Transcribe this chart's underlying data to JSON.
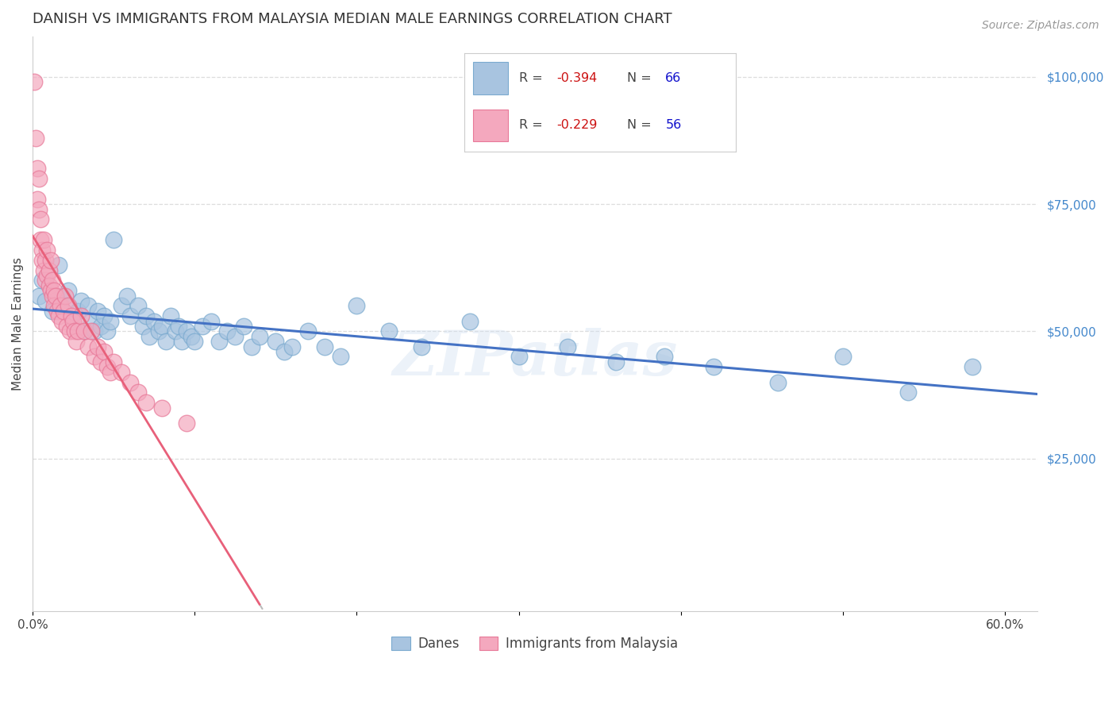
{
  "title": "DANISH VS IMMIGRANTS FROM MALAYSIA MEDIAN MALE EARNINGS CORRELATION CHART",
  "source": "Source: ZipAtlas.com",
  "ylabel": "Median Male Earnings",
  "yticks": [
    0,
    25000,
    50000,
    75000,
    100000
  ],
  "ytick_labels": [
    "",
    "$25,000",
    "$50,000",
    "$75,000",
    "$100,000"
  ],
  "xlim": [
    0.0,
    0.62
  ],
  "ylim": [
    -5000,
    108000
  ],
  "xticks": [
    0.0,
    0.1,
    0.2,
    0.3,
    0.4,
    0.5,
    0.6
  ],
  "xtick_labels": [
    "0.0%",
    "",
    "",
    "",
    "",
    "",
    "60.0%"
  ],
  "legend_blue_r": "-0.394",
  "legend_blue_n": "66",
  "legend_pink_r": "-0.229",
  "legend_pink_n": "56",
  "legend_label_blue": "Danes",
  "legend_label_pink": "Immigrants from Malaysia",
  "blue_color": "#A8C4E0",
  "blue_edge_color": "#7AAACF",
  "pink_color": "#F4A8BE",
  "pink_edge_color": "#E87898",
  "trendline_blue_color": "#4472C4",
  "trendline_pink_color": "#E8607A",
  "trendline_pink_dashed_color": "#BBBBBB",
  "blue_points_x": [
    0.004,
    0.006,
    0.008,
    0.012,
    0.016,
    0.018,
    0.02,
    0.022,
    0.025,
    0.028,
    0.03,
    0.032,
    0.034,
    0.036,
    0.038,
    0.04,
    0.042,
    0.044,
    0.046,
    0.048,
    0.05,
    0.055,
    0.058,
    0.06,
    0.065,
    0.068,
    0.07,
    0.072,
    0.075,
    0.078,
    0.08,
    0.082,
    0.085,
    0.088,
    0.09,
    0.092,
    0.095,
    0.098,
    0.1,
    0.105,
    0.11,
    0.115,
    0.12,
    0.125,
    0.13,
    0.135,
    0.14,
    0.15,
    0.155,
    0.16,
    0.17,
    0.18,
    0.19,
    0.2,
    0.22,
    0.24,
    0.27,
    0.3,
    0.33,
    0.36,
    0.39,
    0.42,
    0.46,
    0.5,
    0.54,
    0.58
  ],
  "blue_points_y": [
    57000,
    60000,
    56000,
    54000,
    63000,
    57000,
    55000,
    58000,
    52000,
    54000,
    56000,
    50000,
    55000,
    52000,
    50000,
    54000,
    51000,
    53000,
    50000,
    52000,
    68000,
    55000,
    57000,
    53000,
    55000,
    51000,
    53000,
    49000,
    52000,
    50000,
    51000,
    48000,
    53000,
    50000,
    51000,
    48000,
    50000,
    49000,
    48000,
    51000,
    52000,
    48000,
    50000,
    49000,
    51000,
    47000,
    49000,
    48000,
    46000,
    47000,
    50000,
    47000,
    45000,
    55000,
    50000,
    47000,
    52000,
    45000,
    47000,
    44000,
    45000,
    43000,
    40000,
    45000,
    38000,
    43000
  ],
  "pink_points_x": [
    0.001,
    0.002,
    0.003,
    0.003,
    0.004,
    0.004,
    0.005,
    0.005,
    0.006,
    0.006,
    0.007,
    0.007,
    0.008,
    0.008,
    0.009,
    0.009,
    0.01,
    0.01,
    0.011,
    0.011,
    0.012,
    0.012,
    0.013,
    0.013,
    0.014,
    0.015,
    0.016,
    0.017,
    0.018,
    0.019,
    0.02,
    0.021,
    0.022,
    0.023,
    0.024,
    0.025,
    0.026,
    0.027,
    0.028,
    0.03,
    0.032,
    0.034,
    0.036,
    0.038,
    0.04,
    0.042,
    0.044,
    0.046,
    0.048,
    0.05,
    0.055,
    0.06,
    0.065,
    0.07,
    0.08,
    0.095
  ],
  "pink_points_y": [
    99000,
    88000,
    82000,
    76000,
    80000,
    74000,
    72000,
    68000,
    66000,
    64000,
    68000,
    62000,
    64000,
    60000,
    66000,
    61000,
    62000,
    59000,
    64000,
    58000,
    60000,
    57000,
    58000,
    55000,
    57000,
    54000,
    53000,
    55000,
    52000,
    54000,
    57000,
    51000,
    55000,
    50000,
    53000,
    52000,
    50000,
    48000,
    50000,
    53000,
    50000,
    47000,
    50000,
    45000,
    47000,
    44000,
    46000,
    43000,
    42000,
    44000,
    42000,
    40000,
    38000,
    36000,
    35000,
    32000
  ],
  "blue_trendline_x_start": 0.0,
  "blue_trendline_x_end": 0.62,
  "pink_trendline_solid_x_start": 0.0,
  "pink_trendline_solid_x_end": 0.14,
  "pink_trendline_dashed_x_start": 0.14,
  "pink_trendline_dashed_x_end": 0.4,
  "watermark": "ZIPatlas",
  "background_color": "#FFFFFF",
  "grid_color": "#DDDDDD",
  "title_fontsize": 13,
  "source_fontsize": 10,
  "axis_label_fontsize": 11,
  "tick_fontsize": 11
}
